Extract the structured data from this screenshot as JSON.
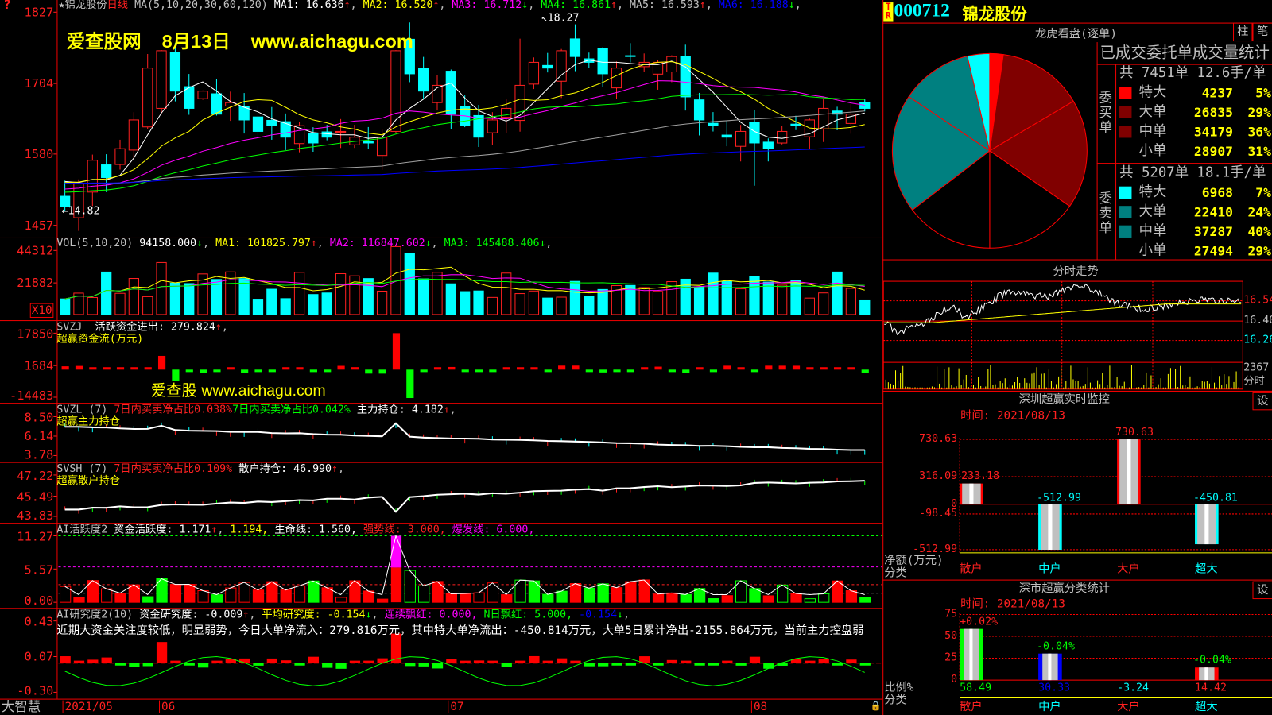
{
  "main": {
    "star": "★",
    "stock_name": "锦龙股份",
    "period": "日线",
    "ma_label": "MA(5,10,20,30,60,120)",
    "ma": [
      {
        "label": "MA1: 16.636",
        "arrow": "↑",
        "color": "#ffffff",
        "arrow_color": "#ff2020"
      },
      {
        "label": "MA2: 16.520",
        "arrow": "↑",
        "color": "#ffff00",
        "arrow_color": "#ff2020"
      },
      {
        "label": "MA3: 16.712",
        "arrow": "↓",
        "color": "#ff00ff",
        "arrow_color": "#00ff00"
      },
      {
        "label": "MA4: 16.861",
        "arrow": "↑",
        "color": "#00ff00",
        "arrow_color": "#ff2020"
      },
      {
        "label": "MA5: 16.593",
        "arrow": "↑",
        "color": "#c0c0c0",
        "arrow_color": "#ff2020"
      },
      {
        "label": "MA6: 16.188",
        "arrow": "↓",
        "color": "#0000ff",
        "arrow_color": "#00ff00"
      }
    ],
    "y_ticks": [
      "1827",
      "1704",
      "1580",
      "1457"
    ],
    "high_marker": "18.27",
    "low_marker": "14.82",
    "watermark": {
      "site": "爱查股网",
      "date": "8月13日",
      "url": "www.aichagu.com"
    }
  },
  "vol": {
    "label": "VOL(5,10,20)",
    "value": "94158.000",
    "value_arrow": "↓",
    "ma": [
      {
        "label": "MA1: 101825.797",
        "arrow": "↑",
        "color": "#ffff00",
        "arrow_color": "#ff2020"
      },
      {
        "label": "MA2: 116847.602",
        "arrow": "↓",
        "color": "#ff00ff",
        "arrow_color": "#00ff00"
      },
      {
        "label": "MA3: 145488.406",
        "arrow": "↓",
        "color": "#00ff00",
        "arrow_color": "#00ff00"
      }
    ],
    "y_ticks": [
      "44312",
      "21882"
    ],
    "unit": "X10"
  },
  "svzj": {
    "label": "SVZJ",
    "line": "活跃资金进出: 279.824",
    "arrow": "↑",
    "subtitle": "超赢资金流(万元)",
    "y_ticks": [
      "17850",
      "1684",
      "-14483"
    ],
    "watermark": "爱查股 www.aichagu.com"
  },
  "svzl": {
    "label": "SVZL (7)",
    "ratio_red": "7日内买卖净占比0.038%",
    "ratio_green": "7日内买卖净占比0.042%",
    "holding": "主力持仓: 4.182",
    "arrow": "↑",
    "subtitle": "超赢主力持仓",
    "y_ticks": [
      "8.50",
      "6.14",
      "3.78"
    ]
  },
  "svsh": {
    "label": "SVSH (7)",
    "ratio_red": "7日内买卖净占比0.109%",
    "holding": "散户持仓: 46.990",
    "arrow": "↑",
    "subtitle": "超赢散户持仓",
    "y_ticks": [
      "47.22",
      "45.49",
      "43.83"
    ]
  },
  "ai1": {
    "label": "AI活跃度2",
    "activity": "资金活跃度: 1.171",
    "arrow": "↑",
    "v2": "1.194,",
    "life": "生命线: 1.560,",
    "strong": "强势线: 3.000,",
    "burst": "爆发线: 6.000,",
    "y_ticks": [
      "11.27",
      "5.57",
      "0.00"
    ]
  },
  "ai2": {
    "label": "AI研究度2(10)",
    "research": "资金研究度: -0.009",
    "arrow": "↑",
    "avg": "平均研究度: -0.154",
    "avg_arrow": "↓",
    "streak": "连续飘红: 0.000,",
    "nday": "N日飘红: 5.000,",
    "last": "-0.154",
    "last_arrow": "↓",
    "comment": "近期大资金关注度较低，明显弱势，今日大单净流入：279.816万元，其中特大单净流出：-450.814万元，大单5日累计净出-2155.864万元，当前主力控盘弱",
    "y_ticks": [
      "0.43",
      "0.07",
      "-0.30"
    ]
  },
  "footer": {
    "brand": "大智慧",
    "dates": [
      "2021/05",
      "06",
      "07",
      "08"
    ]
  },
  "right": {
    "badge": "TR",
    "code": "000712",
    "name": "锦龙股份",
    "dragon_title": "龙虎看盘(逐单)",
    "btn_bar": "柱",
    "btn_tick": "笔",
    "stats_title": "已成交委托单成交量统计",
    "buy": {
      "side_label": "委买单",
      "summary": "共 7451单 12.6手/单",
      "rows": [
        {
          "label": "特大",
          "value": "4237",
          "pct": "5%",
          "color": "#ff0000",
          "amount": 4237
        },
        {
          "label": "大单",
          "value": "26835",
          "pct": "29%",
          "color": "#800000",
          "amount": 26835
        },
        {
          "label": "中单",
          "value": "34179",
          "pct": "36%",
          "color": "#800000",
          "amount": 34179
        },
        {
          "label": "小单",
          "value": "28907",
          "pct": "31%",
          "color": "#000000",
          "amount": 28907
        }
      ]
    },
    "sell": {
      "side_label": "委卖单",
      "summary": "共 5207单 18.1手/单",
      "rows": [
        {
          "label": "特大",
          "value": "6968",
          "pct": "7%",
          "color": "#00ffff",
          "amount": 6968
        },
        {
          "label": "大单",
          "value": "22410",
          "pct": "24%",
          "color": "#008080",
          "amount": 22410
        },
        {
          "label": "中单",
          "value": "37287",
          "pct": "40%",
          "color": "#008080",
          "amount": 37287
        },
        {
          "label": "小单",
          "value": "27494",
          "pct": "29%",
          "color": "#000000",
          "amount": 27494
        }
      ]
    },
    "intraday": {
      "title": "分时走势",
      "y_ticks": [
        "16.54",
        "16.40",
        "16.26"
      ],
      "vol_tick": "2367",
      "vol_label": "分时"
    },
    "monitor": {
      "title": "深圳超赢实时监控",
      "settings": "设",
      "time": "时间: 2021/08/13",
      "y_ticks": [
        "730.63",
        "316.09",
        "0",
        "-98.45",
        "-512.99"
      ],
      "ylabel": "净额(万元)",
      "xlabel": "分类",
      "categories": [
        "散户",
        "中户",
        "大户",
        "超大"
      ],
      "category_colors": [
        "#ff2020",
        "#00ffff",
        "#ff2020",
        "#00ffff"
      ],
      "values": [
        233.18,
        -512.99,
        730.63,
        -450.81
      ],
      "value_labels": [
        "233.18",
        "-512.99",
        "730.63",
        "-450.81"
      ]
    },
    "classify": {
      "title": "深市超赢分类统计",
      "settings": "设",
      "time": "时间: 2021/08/13",
      "y_ticks": [
        "75",
        "50",
        "25",
        "0"
      ],
      "ylabel": "比例%",
      "xlabel": "分类",
      "categories": [
        "散户",
        "中户",
        "大户",
        "超大"
      ],
      "category_colors": [
        "#ff2020",
        "#00ffff",
        "#ff2020",
        "#00ffff"
      ],
      "values": [
        58.49,
        30.33,
        -3.24,
        14.42
      ],
      "value_labels": [
        "58.49",
        "30.33",
        "-3.24",
        "14.42"
      ],
      "value_colors": [
        "#00ff00",
        "#0000ff",
        "#00ffff",
        "#ff2020"
      ],
      "change_labels": [
        "+0.02%",
        "-0.04%",
        "",
        "-0.04%"
      ],
      "change_colors": [
        "#ff2020",
        "#00ff00",
        "#00ff00",
        "#00ff00"
      ],
      "bar_colors": [
        "#00ff00",
        "#0000ff",
        "#00ffff",
        "#ff0000"
      ]
    }
  }
}
